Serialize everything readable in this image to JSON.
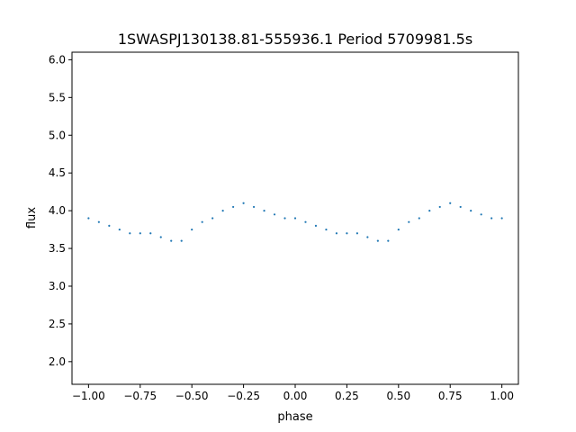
{
  "chart_data": {
    "type": "scatter",
    "title": "1SWASPJ130138.81-555936.1 Period 5709981.5s",
    "xlabel": "phase",
    "ylabel": "flux",
    "xlim": [
      -1.08,
      1.08
    ],
    "ylim": [
      1.7,
      6.1
    ],
    "xticks": [
      -1.0,
      -0.75,
      -0.5,
      -0.25,
      0.0,
      0.25,
      0.5,
      0.75,
      1.0
    ],
    "xtick_labels": [
      "−1.00",
      "−0.75",
      "−0.50",
      "−0.25",
      "0.00",
      "0.25",
      "0.50",
      "0.75",
      "1.00"
    ],
    "yticks": [
      2.0,
      2.5,
      3.0,
      3.5,
      4.0,
      4.5,
      5.0,
      5.5,
      6.0
    ],
    "ytick_labels": [
      "2.0",
      "2.5",
      "3.0",
      "3.5",
      "4.0",
      "4.5",
      "5.0",
      "5.5",
      "6.0"
    ],
    "grid": false,
    "marker_color": "#1f77b4",
    "series": [
      {
        "x": [
          -1.0,
          -0.95,
          -0.9,
          -0.85,
          -0.8,
          -0.75,
          -0.7,
          -0.65,
          -0.6,
          -0.55,
          -0.5,
          -0.45,
          -0.4,
          -0.35,
          -0.3,
          -0.25,
          -0.2,
          -0.15,
          -0.1,
          -0.05,
          0.0,
          0.05,
          0.1,
          0.15,
          0.2,
          0.25,
          0.3,
          0.35,
          0.4,
          0.45,
          0.5,
          0.55,
          0.6,
          0.65,
          0.7,
          0.75,
          0.8,
          0.85,
          0.9,
          0.95,
          1.0
        ],
        "y": [
          3.9,
          3.85,
          3.8,
          3.75,
          3.7,
          3.7,
          3.7,
          3.65,
          3.6,
          3.6,
          3.75,
          3.85,
          3.9,
          4.0,
          4.05,
          4.1,
          4.05,
          4.0,
          3.95,
          3.9,
          3.9,
          3.85,
          3.8,
          3.75,
          3.7,
          3.7,
          3.7,
          3.65,
          3.6,
          3.6,
          3.75,
          3.85,
          3.9,
          4.0,
          4.05,
          4.1,
          4.05,
          4.0,
          3.95,
          3.9,
          3.9
        ]
      }
    ]
  }
}
